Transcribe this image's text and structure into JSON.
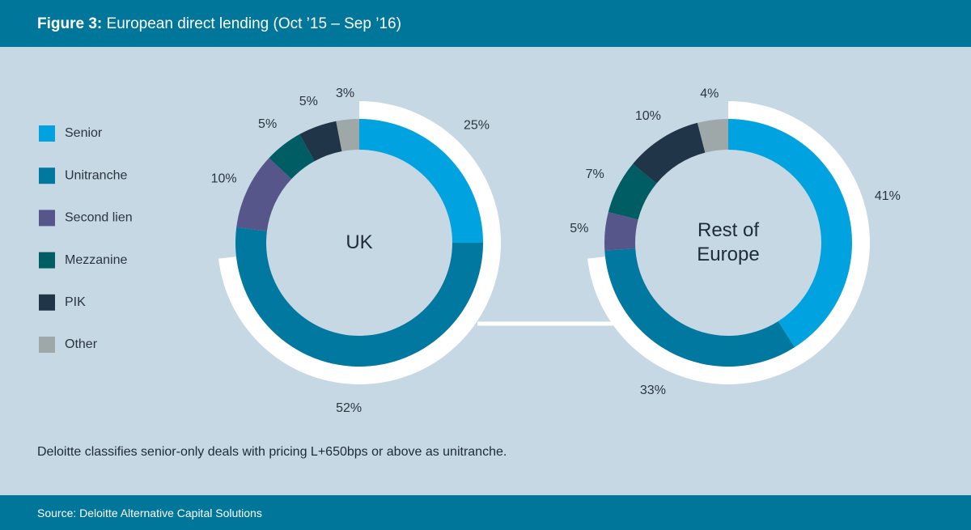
{
  "header": {
    "figure": "Figure 3:",
    "title": "European direct lending (Oct ’15 – Sep ’16)"
  },
  "note": "Deloitte classifies senior-only deals with pricing L+650bps or above as unitranche.",
  "source": "Source: Deloitte Alternative Capital Solutions",
  "chart_data": [
    {
      "type": "donut",
      "center_label": "UK",
      "categories": [
        "Senior",
        "Unitranche",
        "Second lien",
        "Mezzanine",
        "PIK",
        "Other"
      ],
      "colors": [
        "#00a3e0",
        "#00789f",
        "#56568a",
        "#005d63",
        "#213548",
        "#9ea8a8"
      ],
      "values": [
        25,
        52,
        10,
        5,
        5,
        3
      ],
      "value_labels": [
        "25%",
        "52%",
        "10%",
        "5%",
        "5%",
        "3%"
      ]
    },
    {
      "type": "donut",
      "center_label": "Rest of Europe",
      "categories": [
        "Senior",
        "Unitranche",
        "Second lien",
        "Mezzanine",
        "PIK",
        "Other"
      ],
      "colors": [
        "#00a3e0",
        "#00789f",
        "#56568a",
        "#005d63",
        "#213548",
        "#9ea8a8"
      ],
      "values": [
        41,
        33,
        5,
        7,
        10,
        4
      ],
      "value_labels": [
        "41%",
        "33%",
        "5%",
        "7%",
        "10%",
        "4%"
      ]
    }
  ]
}
